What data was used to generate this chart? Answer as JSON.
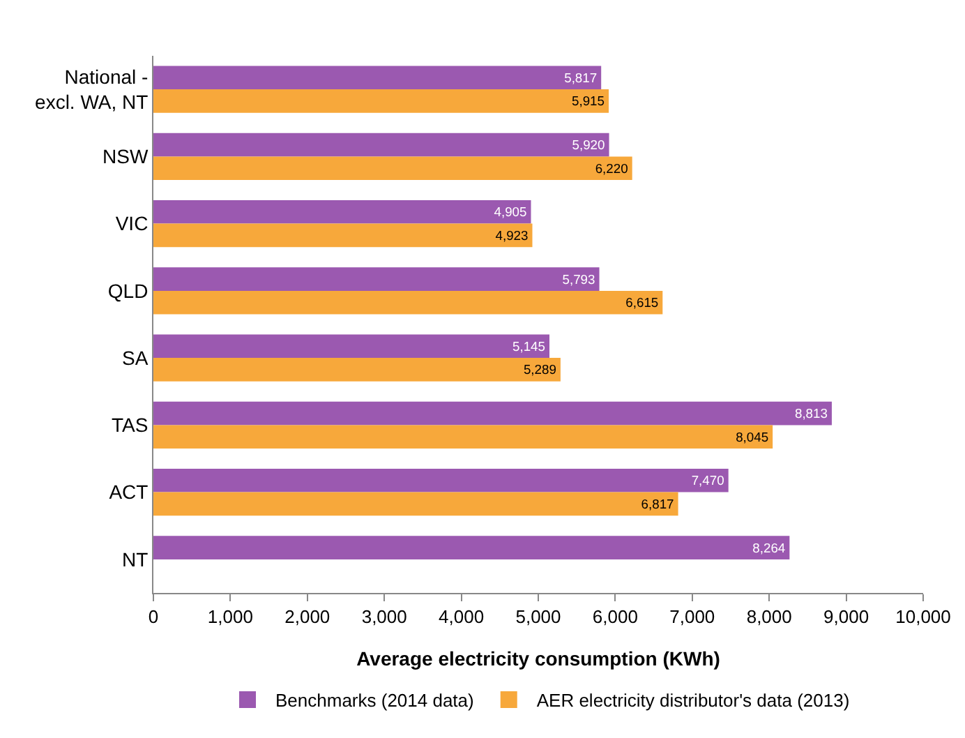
{
  "chart_data": {
    "type": "bar",
    "orientation": "horizontal",
    "xlabel": "Average electricity consumption (KWh)",
    "categories": [
      "National - excl. WA, NT",
      "NSW",
      "VIC",
      "QLD",
      "SA",
      "TAS",
      "ACT",
      "NT"
    ],
    "series": [
      {
        "name": "Benchmarks (2014 data)",
        "color": "#9b59b0",
        "values": [
          5817,
          5920,
          4905,
          5793,
          5145,
          8813,
          7470,
          8264
        ],
        "value_labels": [
          "5,817",
          "5,920",
          "4,905",
          "5,793",
          "5,145",
          "8,813",
          "7,470",
          "8,264"
        ]
      },
      {
        "name": "AER electricity distributor's data (2013)",
        "color": "#f7a83b",
        "values": [
          5915,
          6220,
          4923,
          6615,
          5289,
          8045,
          6817,
          null
        ],
        "value_labels": [
          "5,915",
          "6,220",
          "4,923",
          "6,615",
          "5,289",
          "8,045",
          "6,817",
          null
        ]
      }
    ],
    "xlim": [
      0,
      10000
    ],
    "xticks": [
      0,
      {
        "value": 1000,
        "label": "1,000"
      },
      {
        "value": 2000,
        "label": "2,000"
      },
      {
        "value": 3000,
        "label": "3,000"
      },
      {
        "value": 4000,
        "label": "4,000"
      },
      {
        "value": 5000,
        "label": "5,000"
      },
      {
        "value": 6000,
        "label": "6,000"
      },
      {
        "value": 7000,
        "label": "7,000"
      },
      {
        "value": 8000,
        "label": "8,000"
      },
      {
        "value": 9000,
        "label": "9,000"
      },
      {
        "value": 10000,
        "label": "10,000"
      }
    ],
    "grid": false,
    "legend": "bottom"
  }
}
